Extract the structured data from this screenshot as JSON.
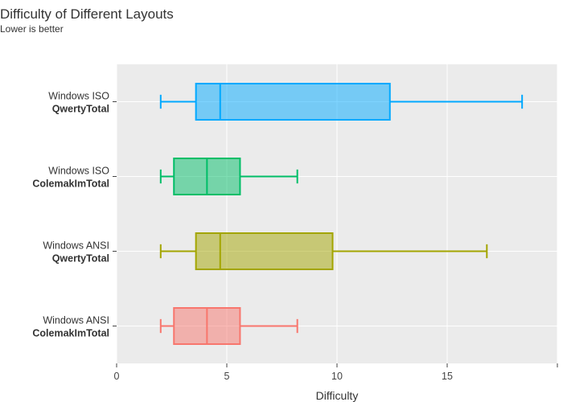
{
  "chart_data": {
    "type": "box",
    "title": "Difficulty of Different Layouts",
    "subtitle": "Lower is better",
    "xlabel": "Difficulty",
    "ylabel": "",
    "xlim": [
      0,
      20
    ],
    "x_ticks": [
      0,
      5,
      10,
      15,
      20
    ],
    "x_tick_labels": [
      "0",
      "5",
      "10",
      "15",
      ""
    ],
    "orientation": "horizontal",
    "grid": true,
    "legend": "none",
    "categories": [
      {
        "line1": "Windows ISO",
        "line2": "QwertyTotal"
      },
      {
        "line1": "Windows ISO",
        "line2": "ColemakImTotal"
      },
      {
        "line1": "Windows ANSI",
        "line2": "QwertyTotal"
      },
      {
        "line1": "Windows ANSI",
        "line2": "ColemakImTotal"
      }
    ],
    "series": [
      {
        "min": 2.0,
        "q1": 3.6,
        "median": 4.7,
        "q3": 12.4,
        "max": 18.4,
        "color": "#00a9ff"
      },
      {
        "min": 2.0,
        "q1": 2.6,
        "median": 4.1,
        "q3": 5.6,
        "max": 8.2,
        "color": "#00be67"
      },
      {
        "min": 2.0,
        "q1": 3.6,
        "median": 4.7,
        "q3": 9.8,
        "max": 16.8,
        "color": "#a3a500"
      },
      {
        "min": 2.0,
        "q1": 2.6,
        "median": 4.1,
        "q3": 5.6,
        "max": 8.2,
        "color": "#f8766d"
      }
    ],
    "colors": {
      "panel": "#ebebeb",
      "grid_major": "#ffffff",
      "text": "#444444"
    }
  }
}
